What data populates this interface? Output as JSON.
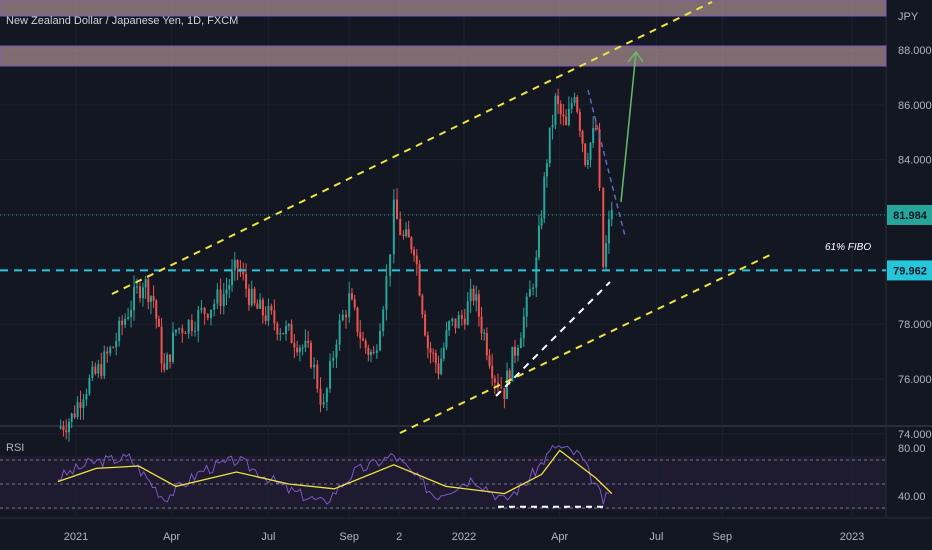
{
  "chart_data": [
    {
      "type": "candlestick",
      "title": "New Zealand Dollar / Japanese Yen, 1D, FXCM",
      "currency": "JPY",
      "ylim": [
        73.8,
        90.3
      ],
      "y_ticks": [
        "88.000",
        "86.000",
        "84.000",
        "82.000",
        "80.000",
        "78.000",
        "76.000",
        "74.000"
      ],
      "x_ticks": [
        "2021",
        "Apr",
        "Jul",
        "Sep",
        "2",
        "2022",
        "Apr",
        "Jul",
        "Sep",
        "2023"
      ],
      "last_price": "81.984",
      "support_price": "79.962",
      "support_label": "61% FIBO",
      "colors": {
        "up": "#26a69a",
        "down": "#ef5350",
        "channel": "#f0e442",
        "support": "#26c6da",
        "zone": "#a48a8c",
        "arrow": "#66bb6a"
      },
      "price_path": [
        [
          "2020-12-15",
          74.2
        ],
        [
          "2020-12-28",
          74.6
        ],
        [
          "2021-01-08",
          75.6
        ],
        [
          "2021-01-22",
          76.3
        ],
        [
          "2021-02-05",
          77.2
        ],
        [
          "2021-02-19",
          78.5
        ],
        [
          "2021-03-05",
          79.6
        ],
        [
          "2021-03-15",
          78.9
        ],
        [
          "2021-03-25",
          76.2
        ],
        [
          "2021-04-05",
          77.8
        ],
        [
          "2021-04-20",
          78.1
        ],
        [
          "2021-05-05",
          78.6
        ],
        [
          "2021-05-20",
          79.1
        ],
        [
          "2021-06-02",
          80.1
        ],
        [
          "2021-06-18",
          78.6
        ],
        [
          "2021-07-01",
          78.3
        ],
        [
          "2021-07-15",
          77.8
        ],
        [
          "2021-07-28",
          77.4
        ],
        [
          "2021-08-10",
          76.8
        ],
        [
          "2021-08-22",
          74.9
        ],
        [
          "2021-09-03",
          77.6
        ],
        [
          "2021-09-15",
          78.9
        ],
        [
          "2021-09-28",
          77.3
        ],
        [
          "2021-10-08",
          76.8
        ],
        [
          "2021-10-20",
          79.6
        ],
        [
          "2021-10-27",
          82.1
        ],
        [
          "2021-11-05",
          81.1
        ],
        [
          "2021-11-15",
          80.9
        ],
        [
          "2021-11-28",
          77.2
        ],
        [
          "2021-12-08",
          76.4
        ],
        [
          "2021-12-18",
          77.9
        ],
        [
          "2021-12-30",
          78.2
        ],
        [
          "2022-01-10",
          79.1
        ],
        [
          "2022-01-20",
          77.6
        ],
        [
          "2022-01-30",
          76.1
        ],
        [
          "2022-02-08",
          75.6
        ],
        [
          "2022-02-18",
          77.1
        ],
        [
          "2022-03-01",
          78.6
        ],
        [
          "2022-03-10",
          80.2
        ],
        [
          "2022-03-20",
          84.1
        ],
        [
          "2022-03-28",
          86.1
        ],
        [
          "2022-04-07",
          85.1
        ],
        [
          "2022-04-15",
          86.6
        ],
        [
          "2022-04-25",
          84.1
        ],
        [
          "2022-05-05",
          85.1
        ],
        [
          "2022-05-12",
          80.1
        ],
        [
          "2022-05-20",
          82.3
        ]
      ],
      "rsi": {
        "label": "RSI",
        "y_ticks": [
          "80.00",
          "40.00"
        ],
        "ylim": [
          30,
          90
        ],
        "levels": [
          70,
          50,
          30
        ],
        "path": [
          [
            "2020-12-15",
            55
          ],
          [
            "2021-01-15",
            68
          ],
          [
            "2021-02-20",
            72
          ],
          [
            "2021-03-25",
            38
          ],
          [
            "2021-05-01",
            62
          ],
          [
            "2021-06-02",
            70
          ],
          [
            "2021-07-20",
            45
          ],
          [
            "2021-08-22",
            34
          ],
          [
            "2021-09-20",
            60
          ],
          [
            "2021-10-27",
            74
          ],
          [
            "2021-12-05",
            40
          ],
          [
            "2022-01-10",
            55
          ],
          [
            "2022-02-08",
            36
          ],
          [
            "2022-03-01",
            52
          ],
          [
            "2022-03-28",
            82
          ],
          [
            "2022-04-20",
            74
          ],
          [
            "2022-05-12",
            36
          ],
          [
            "2022-05-20",
            42
          ]
        ],
        "ma": [
          [
            "2020-12-15",
            52
          ],
          [
            "2021-01-20",
            63
          ],
          [
            "2021-03-01",
            65
          ],
          [
            "2021-04-05",
            48
          ],
          [
            "2021-06-01",
            60
          ],
          [
            "2021-07-20",
            50
          ],
          [
            "2021-09-01",
            46
          ],
          [
            "2021-10-27",
            66
          ],
          [
            "2021-12-15",
            48
          ],
          [
            "2022-02-08",
            42
          ],
          [
            "2022-03-15",
            58
          ],
          [
            "2022-04-01",
            78
          ],
          [
            "2022-05-05",
            55
          ],
          [
            "2022-05-20",
            42
          ]
        ]
      }
    }
  ]
}
